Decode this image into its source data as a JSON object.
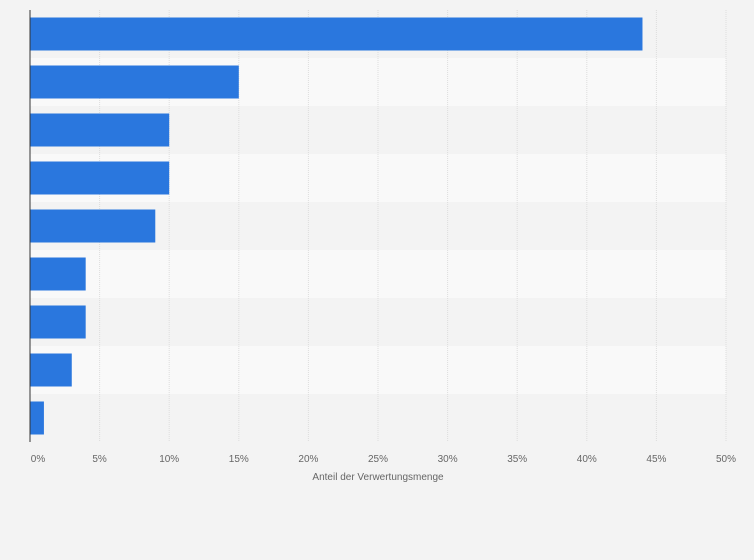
{
  "chart_data": {
    "type": "bar",
    "orientation": "horizontal",
    "categories": [
      "",
      "",
      "",
      "",
      "",
      "",
      "",
      "",
      ""
    ],
    "values": [
      44,
      15,
      10,
      10,
      9,
      4,
      4,
      3,
      1
    ],
    "xlabel": "Anteil der Verwertungsmenge",
    "ylabel": "",
    "xlim": [
      0,
      50
    ],
    "x_ticks": [
      0,
      5,
      10,
      15,
      20,
      25,
      30,
      35,
      40,
      45,
      50
    ],
    "x_tick_labels": [
      "0%",
      "5%",
      "10%",
      "15%",
      "20%",
      "25%",
      "30%",
      "35%",
      "40%",
      "45%",
      "50%"
    ],
    "grid": true,
    "colors": {
      "bar": "#2a77de",
      "band_light": "#f9f9f9",
      "band_dark": "#f3f3f3",
      "gridline": "#dddddd",
      "axis": "#333333",
      "text": "#666666"
    }
  }
}
